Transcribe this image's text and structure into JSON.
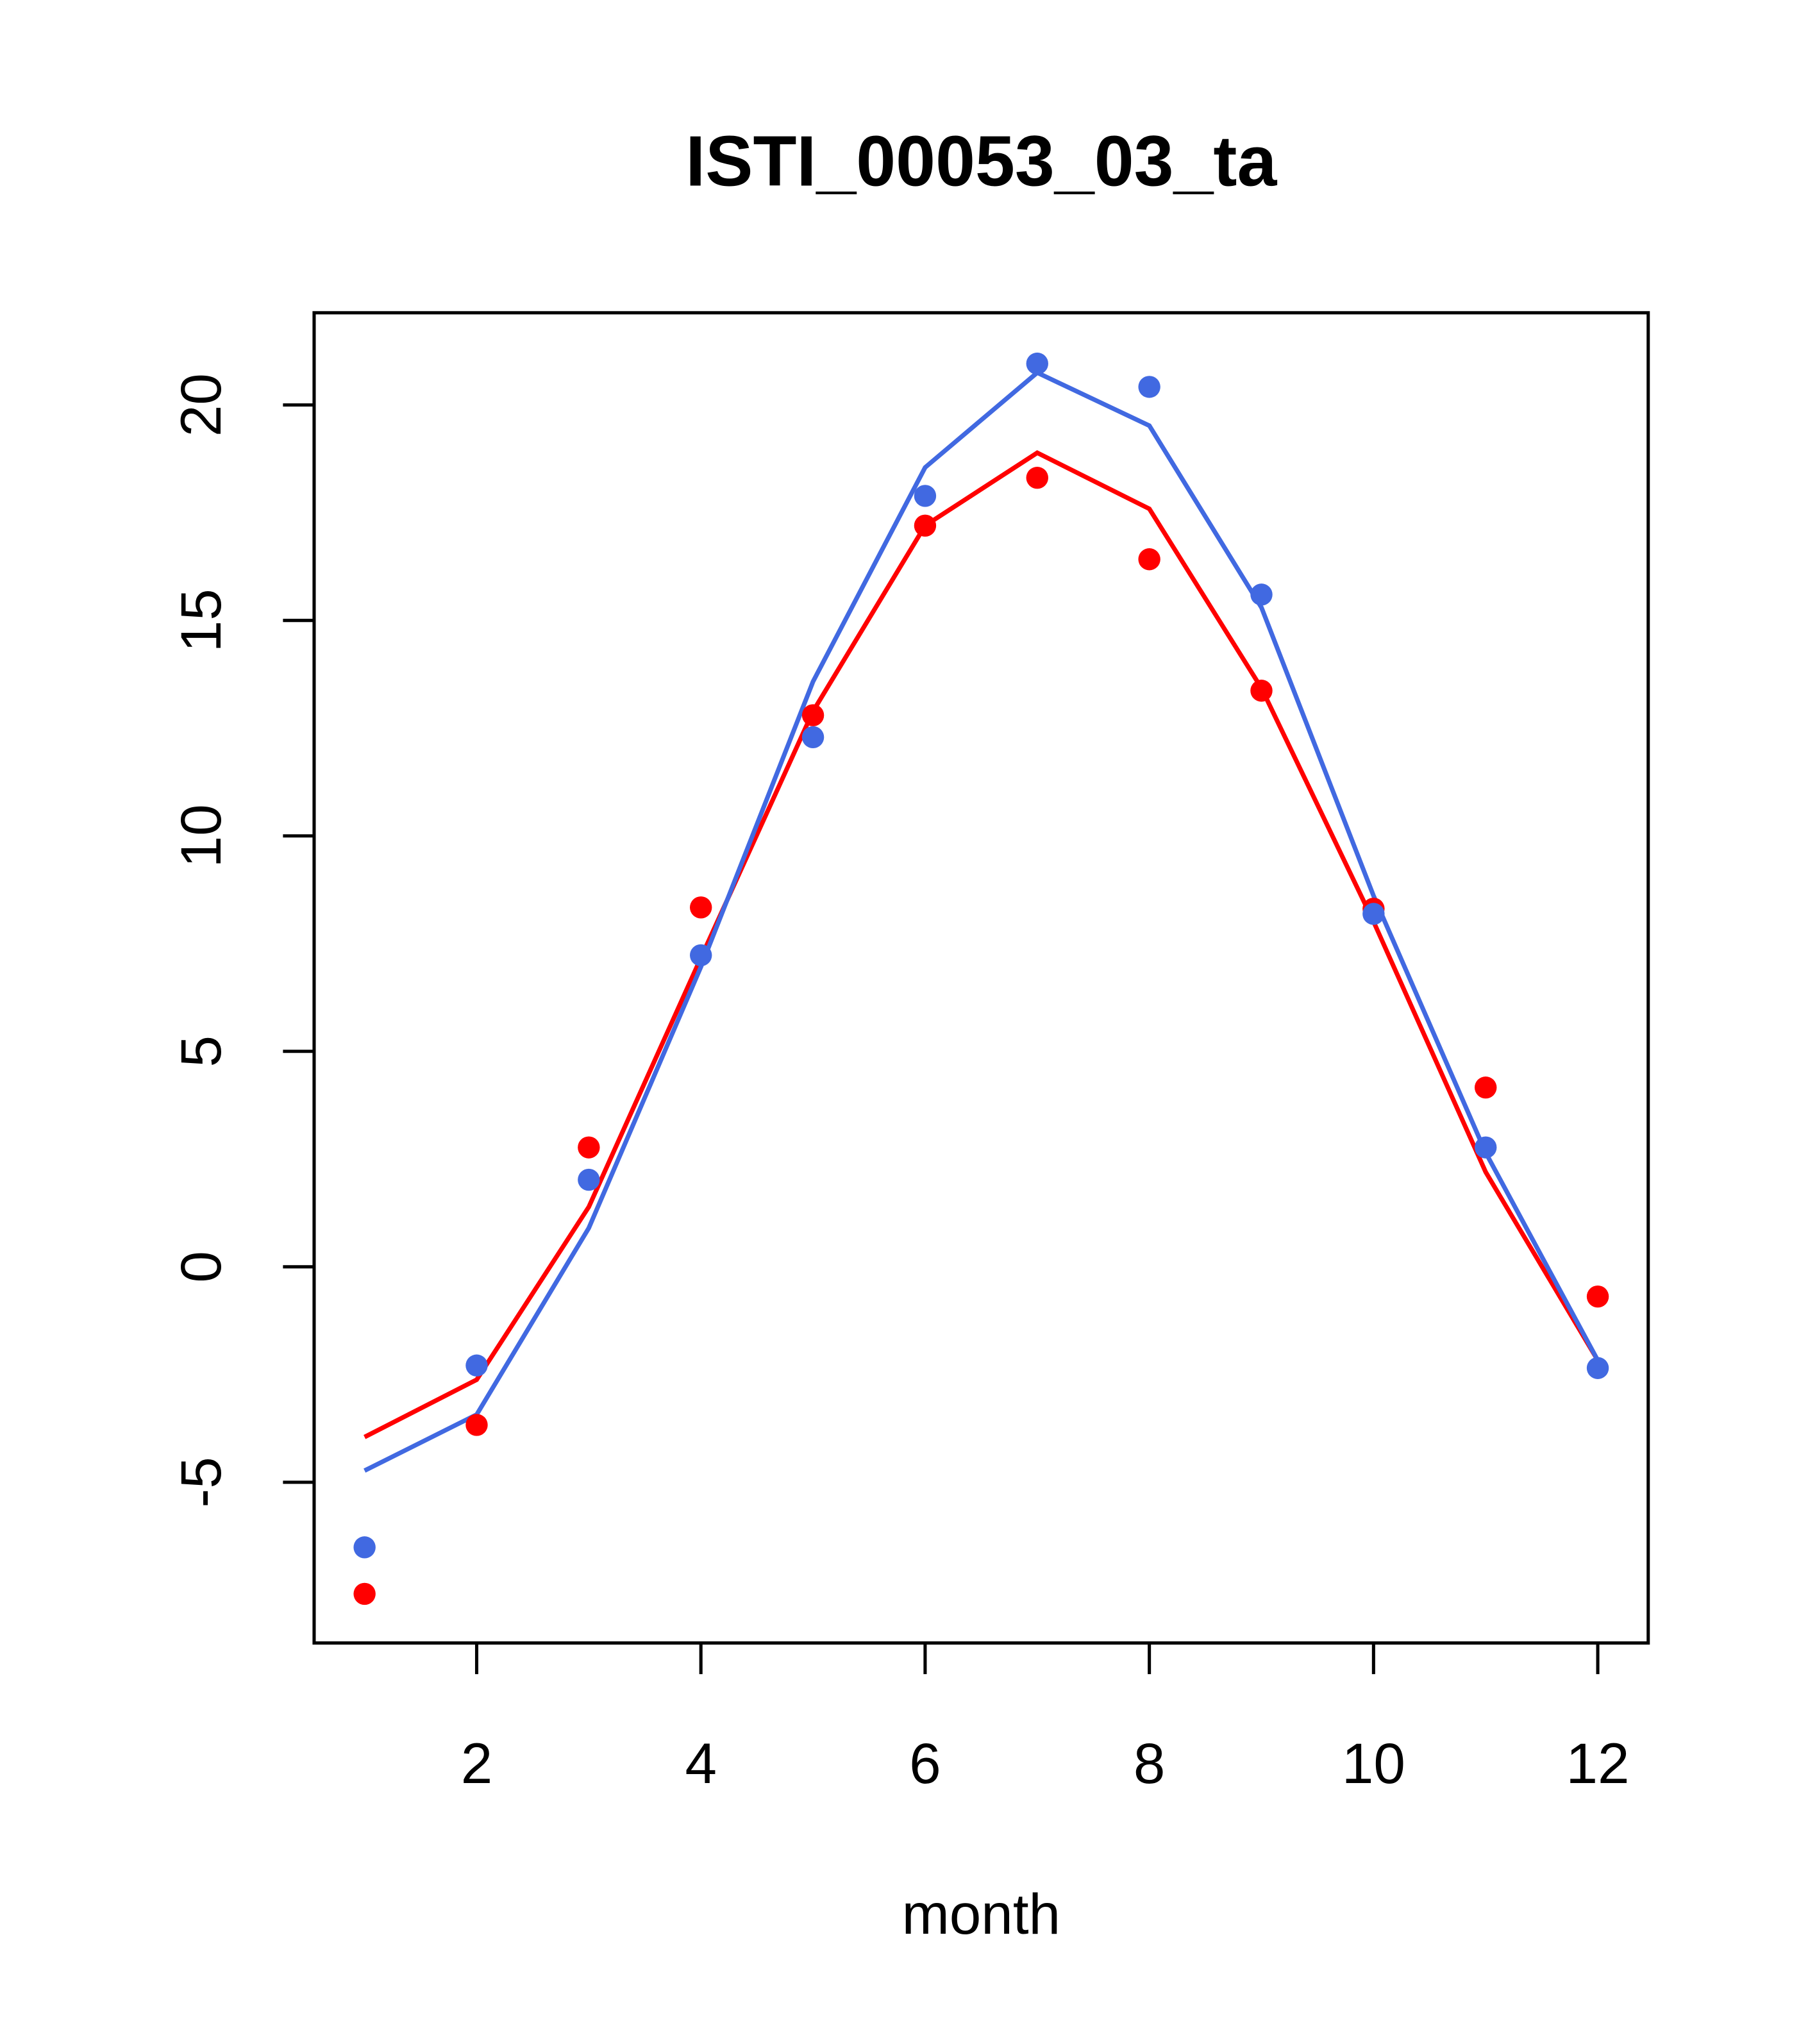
{
  "chart_data": {
    "type": "line",
    "title": "ISTI_00053_03_ta",
    "xlabel": "month",
    "ylabel": "",
    "xlim": [
      0.55,
      12.45
    ],
    "ylim": [
      -8.73,
      22.14
    ],
    "xticks": [
      2,
      4,
      6,
      8,
      10,
      12
    ],
    "yticks": [
      -5,
      0,
      5,
      10,
      15,
      20
    ],
    "grid": false,
    "x": [
      1,
      2,
      3,
      4,
      5,
      6,
      7,
      8,
      9,
      10,
      11,
      12
    ],
    "series": [
      {
        "name": "red points",
        "kind": "points",
        "color": "#FF0000",
        "values": [
          -7.59,
          -3.67,
          2.77,
          8.34,
          12.8,
          17.2,
          18.31,
          16.42,
          13.37,
          8.31,
          4.16,
          -0.69
        ]
      },
      {
        "name": "blue points",
        "kind": "points",
        "color": "#4169E1",
        "values": [
          -6.51,
          -2.29,
          2.02,
          7.23,
          12.29,
          17.89,
          20.96,
          20.42,
          15.6,
          8.19,
          2.77,
          -2.35
        ]
      },
      {
        "name": "red line",
        "kind": "line",
        "color": "#FF0000",
        "values": [
          -3.95,
          -2.62,
          1.39,
          7.17,
          12.89,
          17.2,
          18.89,
          17.59,
          13.43,
          8.01,
          2.2,
          -2.17
        ]
      },
      {
        "name": "blue line",
        "kind": "line",
        "color": "#4169E1",
        "values": [
          -4.73,
          -3.43,
          0.9,
          6.96,
          13.58,
          18.55,
          20.75,
          19.52,
          15.3,
          8.61,
          2.65,
          -2.17
        ]
      }
    ]
  }
}
